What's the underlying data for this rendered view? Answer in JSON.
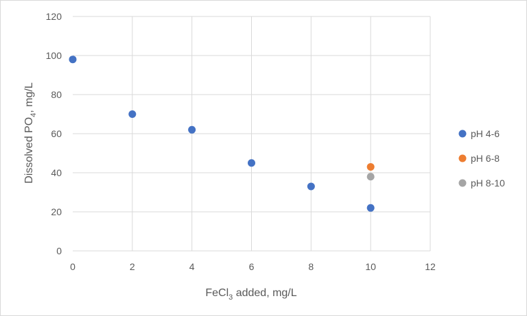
{
  "chart_data": {
    "type": "scatter",
    "title": "",
    "xlabel": {
      "main": "FeCl",
      "sub": "3",
      "rest": " added, mg/L"
    },
    "ylabel": {
      "main": "Dissolved PO",
      "sub": "4",
      "rest": ", mg/L"
    },
    "xlim": [
      0,
      12
    ],
    "ylim": [
      0,
      120
    ],
    "xticks": [
      0,
      2,
      4,
      6,
      8,
      10,
      12
    ],
    "yticks": [
      0,
      20,
      40,
      60,
      80,
      100,
      120
    ],
    "grid": true,
    "legend_position": "right",
    "series": [
      {
        "name": "pH 4-6",
        "color": "#4472c4",
        "points": [
          {
            "x": 0,
            "y": 98
          },
          {
            "x": 2,
            "y": 70
          },
          {
            "x": 4,
            "y": 62
          },
          {
            "x": 6,
            "y": 45
          },
          {
            "x": 8,
            "y": 33
          },
          {
            "x": 10,
            "y": 22
          }
        ]
      },
      {
        "name": "pH 6-8",
        "color": "#ed7d31",
        "points": [
          {
            "x": 10,
            "y": 43
          }
        ]
      },
      {
        "name": "pH 8-10",
        "color": "#a5a5a5",
        "points": [
          {
            "x": 10,
            "y": 38
          }
        ]
      }
    ]
  }
}
